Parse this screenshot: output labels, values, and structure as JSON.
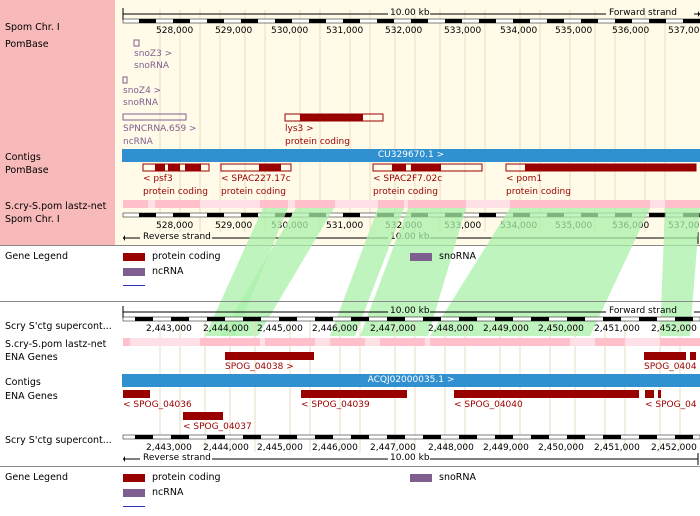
{
  "top": {
    "labels": {
      "spom_chr": "Spom Chr. I",
      "pombase": "PomBase",
      "contigs": "Contigs",
      "pombase2": "PomBase",
      "lastz": "S.cry-S.pom lastz-net",
      "spom_chr2": "Spom Chr. I"
    },
    "scale_label": "10.00 kb",
    "forward_strand": "Forward strand",
    "reverse_strand": "Reverse strand",
    "ticks": [
      "528,000",
      "529,000",
      "530,000",
      "531,000",
      "532,000",
      "533,000",
      "534,000",
      "535,000",
      "536,000",
      "537,00"
    ],
    "features": {
      "snoz3": "snoZ3 >",
      "snoz3_type": "snoRNA",
      "snoz4": "snoZ4 >",
      "snoz4_type": "snoRNA",
      "spncrna": "SPNCRNA.659 >",
      "spncrna_type": "ncRNA",
      "lys3": "lys3 >",
      "lys3_type": "protein coding",
      "contig": "CU329670.1 >",
      "psf3": "< psf3",
      "psf3_type": "protein coding",
      "spac227": "< SPAC227.17c",
      "spac227_type": "protein coding",
      "spac2f7": "< SPAC2F7.02c",
      "spac2f7_type": "protein coding",
      "pom1": "< pom1",
      "pom1_type": "protein coding"
    }
  },
  "legend1": {
    "title": "Gene Legend",
    "protein_coding": "protein coding",
    "ncrna": "ncRNA",
    "snorna": "snoRNA"
  },
  "bottom": {
    "labels": {
      "scry1": "Scry S'ctg supercont...",
      "lastz": "S.cry-S.pom lastz-net",
      "ena": "ENA Genes",
      "contigs": "Contigs",
      "ena2": "ENA Genes",
      "scry2": "Scry S'ctg supercont..."
    },
    "scale_label": "10.00 kb",
    "forward_strand": "Forward strand",
    "reverse_strand": "Reverse strand",
    "ticks": [
      "2,443,000",
      "2,444,000",
      "2,445,000",
      "2,446,000",
      "2,447,000",
      "2,448,000",
      "2,449,000",
      "2,450,000",
      "2,451,000",
      "2,452,000"
    ],
    "features": {
      "spog04038": "SPOG_04038 >",
      "spog0404x": "SPOG_0404",
      "contig": "ACQJ02000035.1 >",
      "spog04036": "< SPOG_04036",
      "spog04039": "< SPOG_04039",
      "spog04040": "< SPOG_04040",
      "spog04x": "< SPOG_04",
      "spog04037": "< SPOG_04037"
    }
  },
  "legend2": {
    "title": "Gene Legend",
    "protein_coding": "protein coding",
    "ncrna": "ncRNA",
    "snorna": "snoRNA"
  },
  "colors": {
    "sidebar": "#f7b9b9",
    "gene": "#990000",
    "contig": "#3090d0",
    "synteny": "#aaf0aa",
    "lastz": "#ffc0cb",
    "rna": "#7f5f8f"
  }
}
